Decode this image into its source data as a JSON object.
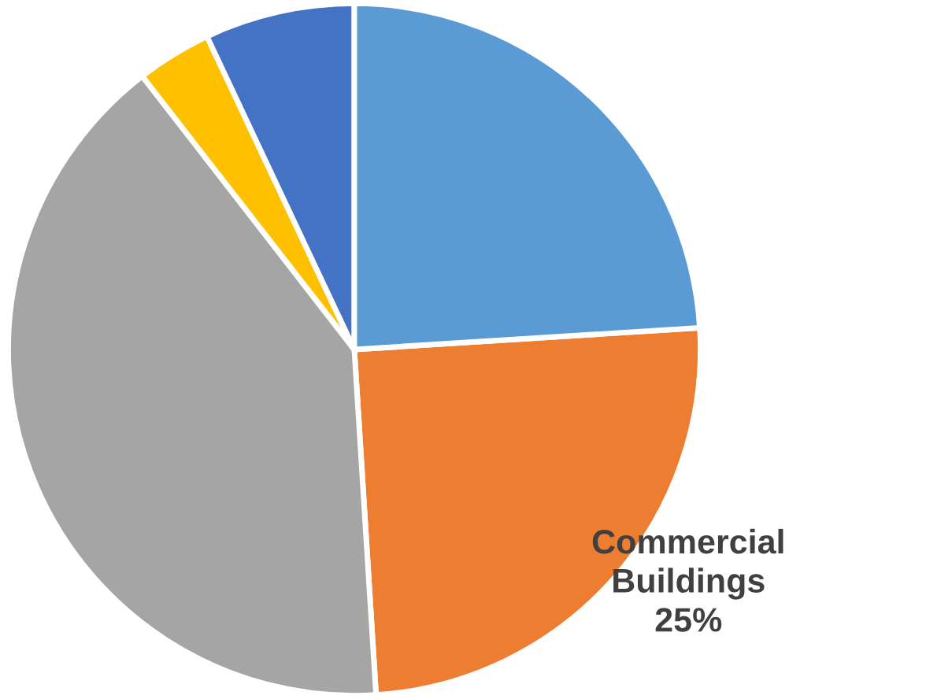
{
  "chart_data": {
    "type": "pie",
    "categories": [
      "Commercial Buildings",
      null,
      null,
      null,
      null
    ],
    "values": [
      25,
      40.5,
      3.5,
      7,
      24
    ],
    "colors": [
      "#ed7d31",
      "#a5a5a5",
      "#ffc000",
      "#4472c4",
      "#5b9bd5"
    ],
    "value_labels": [
      "25%",
      null,
      null,
      null,
      null
    ],
    "legend": false
  }
}
